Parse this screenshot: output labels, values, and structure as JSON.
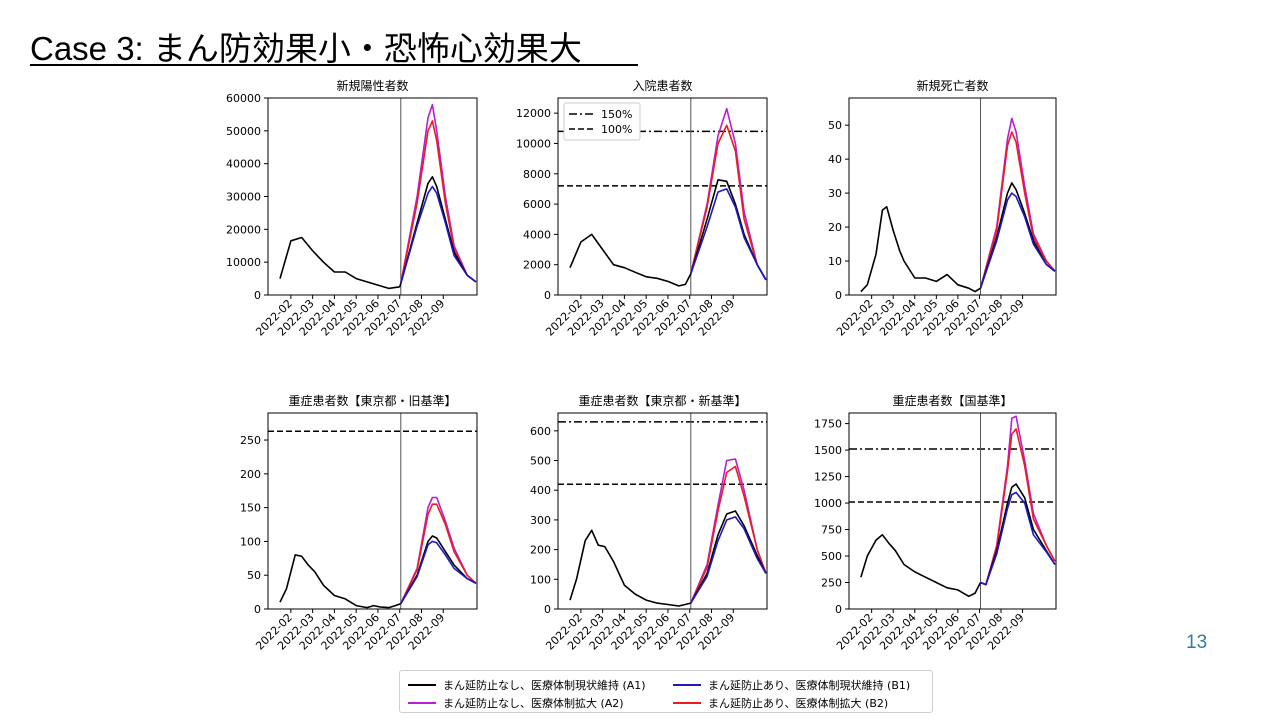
{
  "slide": {
    "title": "Case 3: まん防効果小・恐怖心効果大",
    "page_number": "13"
  },
  "colors": {
    "A1": "#000000",
    "A2": "#b61fd3",
    "B1": "#1d18c7",
    "B2": "#ee1c1c"
  },
  "legend": [
    {
      "key": "A1",
      "label": "まん延防止なし、医療体制現状維持 (A1)"
    },
    {
      "key": "B1",
      "label": "まん延防止あり、医療体制現状維持 (B1)"
    },
    {
      "key": "A2",
      "label": "まん延防止なし、医療体制拡大 (A2)"
    },
    {
      "key": "B2",
      "label": "まん延防止あり、医療体制拡大 (B2)"
    }
  ],
  "chart_data": [
    {
      "type": "line",
      "title": "新規陽性者数",
      "x_tick_labels": [
        "2022-02",
        "2022-03",
        "2022-04",
        "2022-05",
        "2022-06",
        "2022-07",
        "2022-08",
        "2022-09"
      ],
      "ylim": [
        0,
        60000
      ],
      "y_ticks": [
        0,
        10000,
        20000,
        30000,
        40000,
        50000,
        60000
      ],
      "y_tick_labels": [
        "0",
        "10000",
        "20000",
        "30000",
        "40000",
        "50000",
        "60000"
      ],
      "vline_x": 5.55,
      "hlines": [],
      "legend_labels": [],
      "history": {
        "x": [
          0.0,
          0.5,
          1.0,
          1.5,
          2.0,
          2.5,
          3.0,
          3.5,
          4.0,
          4.5,
          5.0,
          5.5,
          5.55
        ],
        "y": [
          5000,
          16500,
          17500,
          13500,
          10000,
          7000,
          7000,
          5000,
          4000,
          3000,
          2000,
          2500,
          3500
        ]
      },
      "series": [
        {
          "key": "A2",
          "x": [
            5.55,
            6.3,
            6.8,
            7.0,
            7.2,
            7.6,
            8.0,
            8.6,
            9.0
          ],
          "y": [
            3500,
            30000,
            54000,
            58000,
            50000,
            30000,
            15000,
            6000,
            4000
          ]
        },
        {
          "key": "B2",
          "x": [
            5.55,
            6.3,
            6.8,
            7.0,
            7.2,
            7.6,
            8.0,
            8.6,
            9.0
          ],
          "y": [
            3500,
            28000,
            50000,
            53000,
            47000,
            28000,
            14000,
            6000,
            4000
          ]
        },
        {
          "key": "A1",
          "x": [
            5.55,
            6.3,
            6.8,
            7.0,
            7.2,
            7.6,
            8.0,
            8.6,
            9.0
          ],
          "y": [
            3500,
            22000,
            34000,
            36000,
            33000,
            23000,
            13000,
            6000,
            4000
          ]
        },
        {
          "key": "B1",
          "x": [
            5.55,
            6.3,
            6.8,
            7.0,
            7.2,
            7.6,
            8.0,
            8.6,
            9.0
          ],
          "y": [
            3500,
            21000,
            31000,
            33000,
            31000,
            22000,
            12000,
            6000,
            4000
          ]
        }
      ]
    },
    {
      "type": "line",
      "title": "入院患者数",
      "x_tick_labels": [
        "2022-02",
        "2022-03",
        "2022-04",
        "2022-05",
        "2022-06",
        "2022-07",
        "2022-08",
        "2022-09"
      ],
      "ylim": [
        0,
        13000
      ],
      "y_ticks": [
        0,
        2000,
        4000,
        6000,
        8000,
        10000,
        12000
      ],
      "y_tick_labels": [
        "0",
        "2000",
        "4000",
        "6000",
        "8000",
        "10000",
        "12000"
      ],
      "vline_x": 5.55,
      "hlines": [
        {
          "y": 10800,
          "style": "dashdot"
        },
        {
          "y": 7200,
          "style": "dashed"
        }
      ],
      "legend_labels": [
        {
          "text": "150%",
          "style": "dashdot"
        },
        {
          "text": "100%",
          "style": "dashed"
        }
      ],
      "history": {
        "x": [
          0.0,
          0.5,
          1.0,
          1.5,
          2.0,
          2.5,
          3.0,
          3.5,
          4.0,
          4.5,
          5.0,
          5.3,
          5.55
        ],
        "y": [
          1800,
          3500,
          4000,
          3000,
          2000,
          1800,
          1500,
          1200,
          1100,
          900,
          600,
          700,
          1400
        ]
      },
      "series": [
        {
          "key": "A2",
          "x": [
            5.55,
            6.3,
            6.8,
            7.2,
            7.6,
            8.0,
            8.6,
            9.0
          ],
          "y": [
            1400,
            6000,
            10500,
            12300,
            10000,
            5500,
            2000,
            1000
          ]
        },
        {
          "key": "B2",
          "x": [
            5.55,
            6.3,
            6.8,
            7.2,
            7.6,
            8.0,
            8.6,
            9.0
          ],
          "y": [
            1400,
            5800,
            10000,
            11200,
            9500,
            5000,
            2000,
            1000
          ]
        },
        {
          "key": "A1",
          "x": [
            5.55,
            6.3,
            6.8,
            7.2,
            7.6,
            8.0,
            8.6,
            9.0
          ],
          "y": [
            1400,
            5000,
            7600,
            7500,
            6000,
            4000,
            2000,
            1000
          ]
        },
        {
          "key": "B1",
          "x": [
            5.55,
            6.3,
            6.8,
            7.2,
            7.6,
            8.0,
            8.6,
            9.0
          ],
          "y": [
            1400,
            4500,
            6800,
            7000,
            5800,
            3800,
            2000,
            1000
          ]
        }
      ]
    },
    {
      "type": "line",
      "title": "新規死亡者数",
      "x_tick_labels": [
        "2022-02",
        "2022-03",
        "2022-04",
        "2022-05",
        "2022-06",
        "2022-07",
        "2022-08",
        "2022-09"
      ],
      "ylim": [
        0,
        58
      ],
      "y_ticks": [
        0,
        10,
        20,
        30,
        40,
        50
      ],
      "y_tick_labels": [
        "0",
        "10",
        "20",
        "30",
        "40",
        "50"
      ],
      "vline_x": 5.55,
      "hlines": [],
      "legend_labels": [],
      "history": {
        "x": [
          0.0,
          0.3,
          0.7,
          1.0,
          1.2,
          1.5,
          1.8,
          2.0,
          2.5,
          3.0,
          3.5,
          4.0,
          4.5,
          5.0,
          5.3,
          5.55
        ],
        "y": [
          1,
          3,
          12,
          25,
          26,
          19,
          13,
          10,
          5,
          5,
          4,
          6,
          3,
          2,
          1,
          2
        ]
      },
      "series": [
        {
          "key": "A2",
          "x": [
            5.55,
            6.3,
            6.8,
            7.0,
            7.2,
            7.6,
            8.0,
            8.6,
            9.0
          ],
          "y": [
            2,
            20,
            46,
            52,
            48,
            32,
            18,
            10,
            7
          ]
        },
        {
          "key": "B2",
          "x": [
            5.55,
            6.3,
            6.8,
            7.0,
            7.2,
            7.6,
            8.0,
            8.6,
            9.0
          ],
          "y": [
            2,
            19,
            44,
            48,
            45,
            30,
            17,
            10,
            7
          ]
        },
        {
          "key": "A1",
          "x": [
            5.55,
            6.3,
            6.8,
            7.0,
            7.2,
            7.6,
            8.0,
            8.6,
            9.0
          ],
          "y": [
            2,
            17,
            30,
            33,
            31,
            24,
            16,
            9,
            7
          ]
        },
        {
          "key": "B1",
          "x": [
            5.55,
            6.3,
            6.8,
            7.0,
            7.2,
            7.6,
            8.0,
            8.6,
            9.0
          ],
          "y": [
            2,
            16,
            28,
            30,
            29,
            23,
            15,
            9,
            7
          ]
        }
      ]
    },
    {
      "type": "line",
      "title": "重症患者数【東京都・旧基準】",
      "x_tick_labels": [
        "2022-02",
        "2022-03",
        "2022-04",
        "2022-05",
        "2022-06",
        "2022-07",
        "2022-08",
        "2022-09"
      ],
      "ylim": [
        0,
        290
      ],
      "y_ticks": [
        0,
        50,
        100,
        150,
        200,
        250
      ],
      "y_tick_labels": [
        "0",
        "50",
        "100",
        "150",
        "200",
        "250"
      ],
      "vline_x": 5.55,
      "hlines": [
        {
          "y": 263,
          "style": "dashed"
        }
      ],
      "legend_labels": [],
      "history": {
        "x": [
          0.0,
          0.3,
          0.7,
          1.0,
          1.3,
          1.6,
          2.0,
          2.5,
          3.0,
          3.5,
          4.0,
          4.3,
          4.6,
          5.0,
          5.3,
          5.55
        ],
        "y": [
          10,
          30,
          80,
          78,
          65,
          55,
          35,
          20,
          15,
          5,
          2,
          5,
          3,
          2,
          5,
          8
        ]
      },
      "series": [
        {
          "key": "A2",
          "x": [
            5.55,
            6.3,
            6.8,
            7.0,
            7.2,
            7.6,
            8.0,
            8.6,
            9.0
          ],
          "y": [
            8,
            60,
            150,
            165,
            165,
            130,
            90,
            50,
            38
          ]
        },
        {
          "key": "B2",
          "x": [
            5.55,
            6.3,
            6.8,
            7.0,
            7.2,
            7.6,
            8.0,
            8.6,
            9.0
          ],
          "y": [
            8,
            58,
            140,
            155,
            155,
            125,
            85,
            50,
            38
          ]
        },
        {
          "key": "A1",
          "x": [
            5.55,
            6.3,
            6.8,
            7.0,
            7.2,
            7.6,
            8.0,
            8.6,
            9.0
          ],
          "y": [
            8,
            50,
            100,
            108,
            105,
            85,
            65,
            45,
            38
          ]
        },
        {
          "key": "B1",
          "x": [
            5.55,
            6.3,
            6.8,
            7.0,
            7.2,
            7.6,
            8.0,
            8.6,
            9.0
          ],
          "y": [
            8,
            48,
            95,
            100,
            98,
            80,
            60,
            45,
            38
          ]
        }
      ]
    },
    {
      "type": "line",
      "title": "重症患者数【東京都・新基準】",
      "x_tick_labels": [
        "2022-02",
        "2022-03",
        "2022-04",
        "2022-05",
        "2022-06",
        "2022-07",
        "2022-08",
        "2022-09"
      ],
      "ylim": [
        0,
        660
      ],
      "y_ticks": [
        0,
        100,
        200,
        300,
        400,
        500,
        600
      ],
      "y_tick_labels": [
        "0",
        "100",
        "200",
        "300",
        "400",
        "500",
        "600"
      ],
      "vline_x": 5.55,
      "hlines": [
        {
          "y": 630,
          "style": "dashdot"
        },
        {
          "y": 420,
          "style": "dashed"
        }
      ],
      "legend_labels": [],
      "history": {
        "x": [
          0.0,
          0.3,
          0.7,
          1.0,
          1.3,
          1.6,
          2.0,
          2.5,
          3.0,
          3.5,
          4.0,
          4.5,
          5.0,
          5.55
        ],
        "y": [
          30,
          100,
          230,
          265,
          215,
          210,
          160,
          80,
          50,
          30,
          20,
          15,
          10,
          20
        ]
      },
      "series": [
        {
          "key": "A2",
          "x": [
            5.55,
            6.3,
            6.8,
            7.2,
            7.6,
            8.0,
            8.6,
            9.0
          ],
          "y": [
            20,
            150,
            350,
            500,
            505,
            400,
            200,
            120
          ]
        },
        {
          "key": "B2",
          "x": [
            5.55,
            6.3,
            6.8,
            7.2,
            7.6,
            8.0,
            8.6,
            9.0
          ],
          "y": [
            20,
            140,
            330,
            460,
            480,
            380,
            200,
            120
          ]
        },
        {
          "key": "A1",
          "x": [
            5.55,
            6.3,
            6.8,
            7.2,
            7.6,
            8.0,
            8.6,
            9.0
          ],
          "y": [
            20,
            120,
            250,
            320,
            330,
            280,
            180,
            120
          ]
        },
        {
          "key": "B1",
          "x": [
            5.55,
            6.3,
            6.8,
            7.2,
            7.6,
            8.0,
            8.6,
            9.0
          ],
          "y": [
            20,
            110,
            230,
            300,
            310,
            270,
            170,
            120
          ]
        }
      ]
    },
    {
      "type": "line",
      "title": "重症患者数【国基準】",
      "x_tick_labels": [
        "2022-02",
        "2022-03",
        "2022-04",
        "2022-05",
        "2022-06",
        "2022-07",
        "2022-08",
        "2022-09"
      ],
      "ylim": [
        0,
        1850
      ],
      "y_ticks": [
        0,
        250,
        500,
        750,
        1000,
        1250,
        1500,
        1750
      ],
      "y_tick_labels": [
        "0",
        "250",
        "500",
        "750",
        "1000",
        "1250",
        "1500",
        "1750"
      ],
      "vline_x": 5.55,
      "hlines": [
        {
          "y": 1510,
          "style": "dashdot"
        },
        {
          "y": 1010,
          "style": "dashed"
        }
      ],
      "legend_labels": [],
      "history": {
        "x": [
          0.0,
          0.3,
          0.7,
          1.0,
          1.3,
          1.6,
          2.0,
          2.5,
          3.0,
          3.5,
          4.0,
          4.5,
          5.0,
          5.3,
          5.55
        ],
        "y": [
          300,
          500,
          650,
          700,
          620,
          550,
          420,
          350,
          300,
          250,
          200,
          180,
          120,
          150,
          250
        ]
      },
      "series": [
        {
          "key": "A2",
          "x": [
            5.55,
            5.8,
            6.3,
            6.8,
            7.0,
            7.2,
            7.6,
            8.0,
            8.6,
            9.0
          ],
          "y": [
            250,
            230,
            600,
            1350,
            1800,
            1820,
            1400,
            900,
            600,
            450
          ]
        },
        {
          "key": "B2",
          "x": [
            5.55,
            5.8,
            6.3,
            6.8,
            7.0,
            7.2,
            7.6,
            8.0,
            8.6,
            9.0
          ],
          "y": [
            250,
            230,
            580,
            1300,
            1650,
            1700,
            1350,
            850,
            600,
            450
          ]
        },
        {
          "key": "A1",
          "x": [
            5.55,
            5.8,
            6.3,
            6.8,
            7.0,
            7.2,
            7.6,
            8.0,
            8.6,
            9.0
          ],
          "y": [
            250,
            230,
            550,
            1000,
            1150,
            1180,
            1050,
            750,
            550,
            420
          ]
        },
        {
          "key": "B1",
          "x": [
            5.55,
            5.8,
            6.3,
            6.8,
            7.0,
            7.2,
            7.6,
            8.0,
            8.6,
            9.0
          ],
          "y": [
            250,
            230,
            520,
            950,
            1080,
            1100,
            1000,
            700,
            540,
            420
          ]
        }
      ]
    }
  ]
}
